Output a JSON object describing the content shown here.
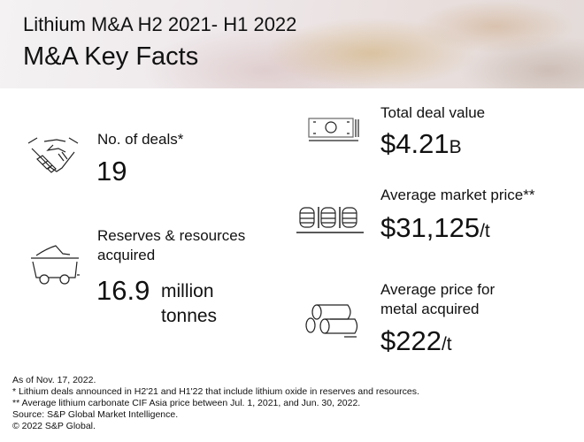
{
  "header": {
    "title": "Lithium M&A H2 2021- H1 2022",
    "subtitle": "M&A Key Facts"
  },
  "facts": {
    "deals": {
      "label": "No. of deals*",
      "value": "19"
    },
    "reserves": {
      "label_line1": "Reserves & resources",
      "label_line2": "acquired",
      "value": "16.9",
      "unit_line1": "million",
      "unit_line2": "tonnes"
    },
    "deal_value": {
      "label": "Total deal value",
      "value": "$4.21",
      "unit": "B"
    },
    "market_price": {
      "label": "Average market price**",
      "value": "$31,125",
      "unit": "/t"
    },
    "metal_price": {
      "label_line1": "Average price for",
      "label_line2": "metal acquired",
      "value": "$222",
      "unit": "/t"
    }
  },
  "footer": [
    "As of Nov. 17, 2022.",
    "* Lithium deals announced in H2'21 and H1'22 that include lithium oxide in reserves and resources.",
    "** Average lithium carbonate CIF Asia price between Jul. 1, 2021, and Jun. 30, 2022.",
    "Source: S&P Global Market Intelligence.",
    "© 2022 S&P Global."
  ]
}
